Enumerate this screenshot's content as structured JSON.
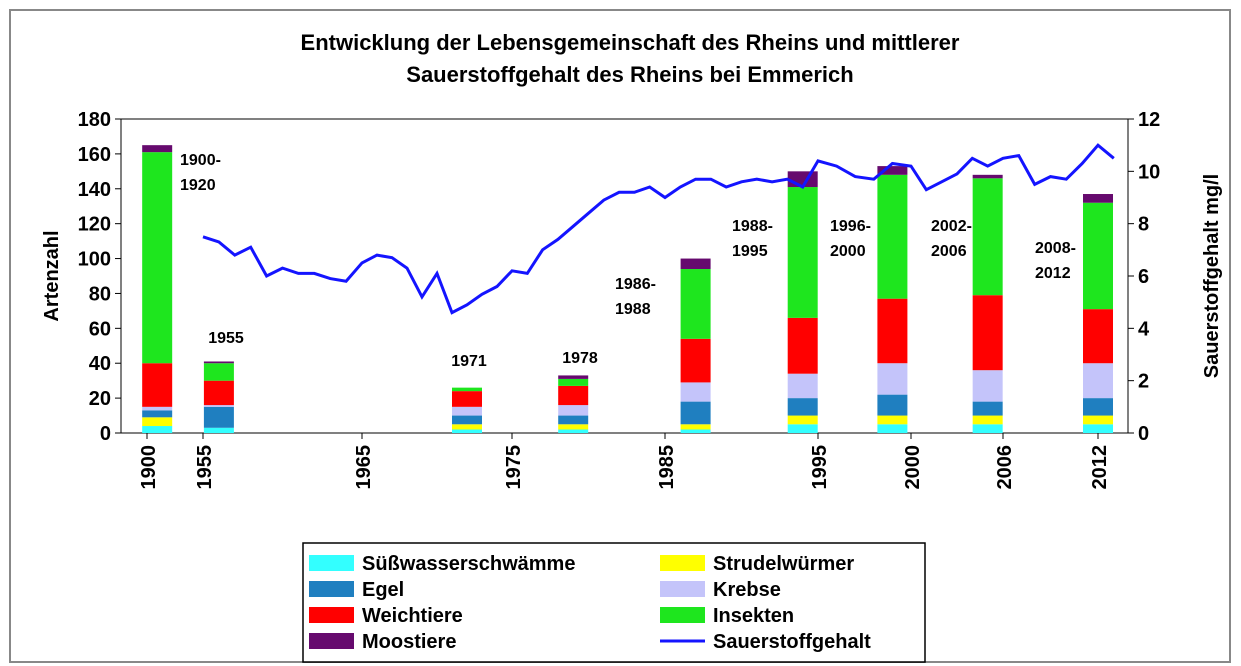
{
  "chart_data": {
    "type": "bar",
    "title": [
      "Entwicklung der Lebensgemeinschaft des Rheins und mittlerer",
      "Sauerstoffgehalt des Rheins bei Emmerich"
    ],
    "y_label": "Artenzahl",
    "y2_label": "Sauerstoffgehalt mg/l",
    "xticks": [
      1900,
      1955,
      1965,
      1975,
      1985,
      1995,
      2000,
      2006,
      2012
    ],
    "ylim": [
      0,
      180
    ],
    "yticks": [
      0,
      20,
      40,
      60,
      80,
      100,
      120,
      140,
      160,
      180
    ],
    "y2lim": [
      0,
      12
    ],
    "y2ticks": [
      0,
      2,
      4,
      6,
      8,
      10,
      12
    ],
    "legend": "bottom",
    "stacked": true,
    "categories": [
      "1900-1920",
      "1955",
      "1971",
      "1978",
      "1986-1988",
      "1988-1995",
      "1996-2000",
      "2002-2006",
      "2008-2012"
    ],
    "categories_x": [
      1910,
      1956,
      1972,
      1979,
      1987,
      1994,
      1999,
      2005,
      2012
    ],
    "series": [
      {
        "name": "Süßwasserschwämme",
        "color": "#33ffff",
        "values": [
          4,
          3,
          2,
          2,
          2,
          5,
          5,
          5,
          5
        ]
      },
      {
        "name": "Strudelwürmer",
        "color": "#ffff00",
        "values": [
          5,
          0,
          3,
          3,
          3,
          5,
          5,
          5,
          5
        ]
      },
      {
        "name": "Egel",
        "color": "#1f7fc0",
        "values": [
          4,
          12,
          5,
          5,
          13,
          10,
          12,
          8,
          10
        ]
      },
      {
        "name": "Krebse",
        "color": "#c4c4fa",
        "values": [
          2,
          1,
          5,
          6,
          11,
          14,
          18,
          18,
          20
        ]
      },
      {
        "name": "Weichtiere",
        "color": "#ff0000",
        "values": [
          25,
          14,
          9,
          11,
          25,
          32,
          37,
          43,
          31
        ]
      },
      {
        "name": "Insekten",
        "color": "#1ee61e",
        "values": [
          121,
          10,
          2,
          4,
          40,
          75,
          71,
          67,
          61
        ]
      },
      {
        "name": "Moostiere",
        "color": "#660a6e",
        "values": [
          4,
          1,
          0,
          2,
          6,
          9,
          5,
          2,
          5
        ]
      },
      {
        "name": "Sauerstoffgehalt",
        "color": "#1414ff",
        "type": "line",
        "axis": "y2",
        "x": [
          1955,
          1956,
          1957,
          1958,
          1959,
          1960,
          1961,
          1962,
          1963,
          1964,
          1965,
          1966,
          1967,
          1968,
          1969,
          1970,
          1971,
          1972,
          1973,
          1974,
          1975,
          1976,
          1977,
          1978,
          1979,
          1980,
          1981,
          1982,
          1983,
          1984,
          1985,
          1986,
          1987,
          1988,
          1989,
          1990,
          1991,
          1992,
          1993,
          1994,
          1995,
          1996,
          1997,
          1998,
          1999,
          2000,
          2001,
          2002,
          2003,
          2004,
          2005,
          2006,
          2007,
          2008,
          2009,
          2010,
          2011,
          2012,
          2013
        ],
        "values": [
          7.5,
          7.3,
          6.8,
          7.1,
          6.0,
          6.3,
          6.1,
          6.1,
          5.9,
          5.8,
          6.5,
          6.8,
          6.7,
          6.3,
          5.2,
          6.1,
          4.6,
          4.9,
          5.3,
          5.6,
          6.2,
          6.1,
          7.0,
          7.4,
          7.9,
          8.4,
          8.9,
          9.2,
          9.2,
          9.4,
          9.0,
          9.4,
          9.7,
          9.7,
          9.4,
          9.6,
          9.7,
          9.6,
          9.7,
          9.4,
          10.4,
          10.2,
          9.8,
          9.7,
          10.3,
          10.2,
          9.3,
          9.6,
          9.9,
          10.5,
          10.2,
          10.5,
          10.6,
          9.5,
          9.8,
          9.7,
          10.3,
          11.0,
          10.5
        ]
      }
    ]
  }
}
